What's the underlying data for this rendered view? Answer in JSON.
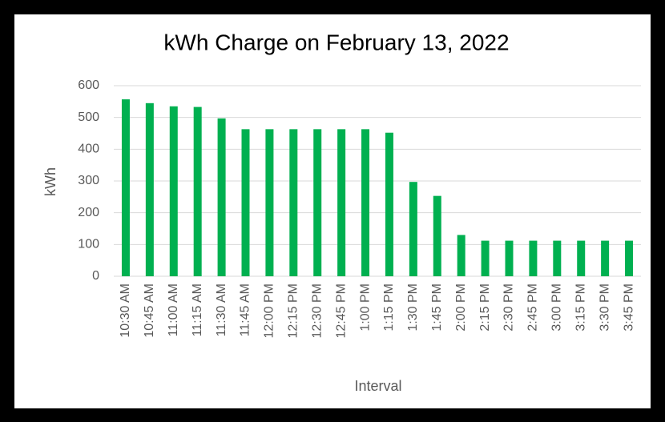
{
  "chart_data": {
    "type": "bar",
    "title": "kWh Charge on February 13, 2022",
    "x_label": "Interval",
    "y_label": "kWh",
    "categories": [
      "10:30 AM",
      "10:45 AM",
      "11:00 AM",
      "11:15 AM",
      "11:30 AM",
      "11:45 AM",
      "12:00 PM",
      "12:15 PM",
      "12:30 PM",
      "12:45 PM",
      "1:00 PM",
      "1:15 PM",
      "1:30 PM",
      "1:45 PM",
      "2:00 PM",
      "2:15 PM",
      "2:30 PM",
      "2:45 PM",
      "3:00 PM",
      "3:15 PM",
      "3:30 PM",
      "3:45 PM"
    ],
    "values": [
      557,
      545,
      535,
      533,
      497,
      463,
      463,
      463,
      463,
      463,
      463,
      452,
      297,
      253,
      130,
      112,
      112,
      112,
      112,
      112,
      112,
      112
    ],
    "color": "#00b050",
    "ylim": [
      0,
      600
    ],
    "yticks": [
      0,
      100,
      200,
      300,
      400,
      500,
      600
    ],
    "grid": true
  }
}
